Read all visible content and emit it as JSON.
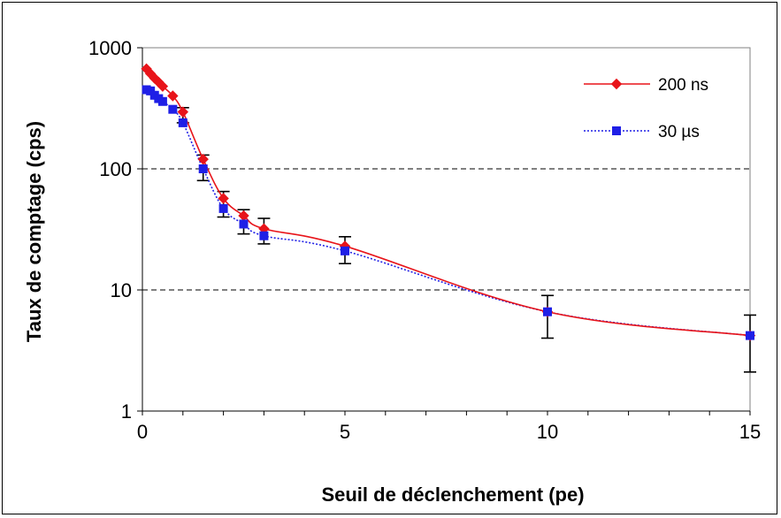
{
  "chart_data": {
    "type": "line",
    "title": "",
    "xlabel": "Seuil de déclenchement (pe)",
    "ylabel": "Taux de comptage (cps)",
    "xlim": [
      0,
      15
    ],
    "ylim": [
      1,
      1000
    ],
    "y_scale": "log",
    "x_ticks": [
      "0",
      "5",
      "10",
      "15"
    ],
    "y_ticks": [
      "1",
      "10",
      "100",
      "1000"
    ],
    "grid": "horizontal dashed",
    "legend_position": "top-right",
    "series": [
      {
        "name": "200 ns",
        "color": "#e8141a",
        "marker": "diamond",
        "line": "solid",
        "points": [
          {
            "x": 0.1,
            "y": 670
          },
          {
            "x": 0.2,
            "y": 610
          },
          {
            "x": 0.3,
            "y": 560
          },
          {
            "x": 0.4,
            "y": 520
          },
          {
            "x": 0.5,
            "y": 480
          },
          {
            "x": 0.75,
            "y": 400
          },
          {
            "x": 1.0,
            "y": 295
          },
          {
            "x": 1.5,
            "y": 120
          },
          {
            "x": 2.0,
            "y": 57
          },
          {
            "x": 2.5,
            "y": 41
          },
          {
            "x": 3.0,
            "y": 32
          },
          {
            "x": 5.0,
            "y": 23
          },
          {
            "x": 10.0,
            "y": 6.6
          },
          {
            "x": 15.0,
            "y": 4.2
          }
        ]
      },
      {
        "name": "30 µs",
        "color": "#1f1fe6",
        "marker": "square",
        "line": "dotted",
        "points": [
          {
            "x": 0.1,
            "y": 450
          },
          {
            "x": 0.2,
            "y": 440
          },
          {
            "x": 0.3,
            "y": 405
          },
          {
            "x": 0.4,
            "y": 380
          },
          {
            "x": 0.5,
            "y": 360
          },
          {
            "x": 0.75,
            "y": 310
          },
          {
            "x": 1.0,
            "y": 240
          },
          {
            "x": 1.5,
            "y": 100
          },
          {
            "x": 2.0,
            "y": 47
          },
          {
            "x": 2.5,
            "y": 35
          },
          {
            "x": 3.0,
            "y": 28
          },
          {
            "x": 5.0,
            "y": 21
          },
          {
            "x": 10.0,
            "y": 6.6
          },
          {
            "x": 15.0,
            "y": 4.2
          }
        ]
      }
    ],
    "error_bars": [
      {
        "x": 1.0,
        "low": 240,
        "high": 320
      },
      {
        "x": 1.5,
        "low": 80,
        "high": 130
      },
      {
        "x": 2.0,
        "low": 40,
        "high": 65
      },
      {
        "x": 2.5,
        "low": 29,
        "high": 46
      },
      {
        "x": 3.0,
        "low": 24,
        "high": 39
      },
      {
        "x": 5.0,
        "low": 16.5,
        "high": 27.5
      },
      {
        "x": 10.0,
        "low": 4.0,
        "high": 9.0
      },
      {
        "x": 15.0,
        "low": 2.1,
        "high": 6.2
      }
    ]
  }
}
